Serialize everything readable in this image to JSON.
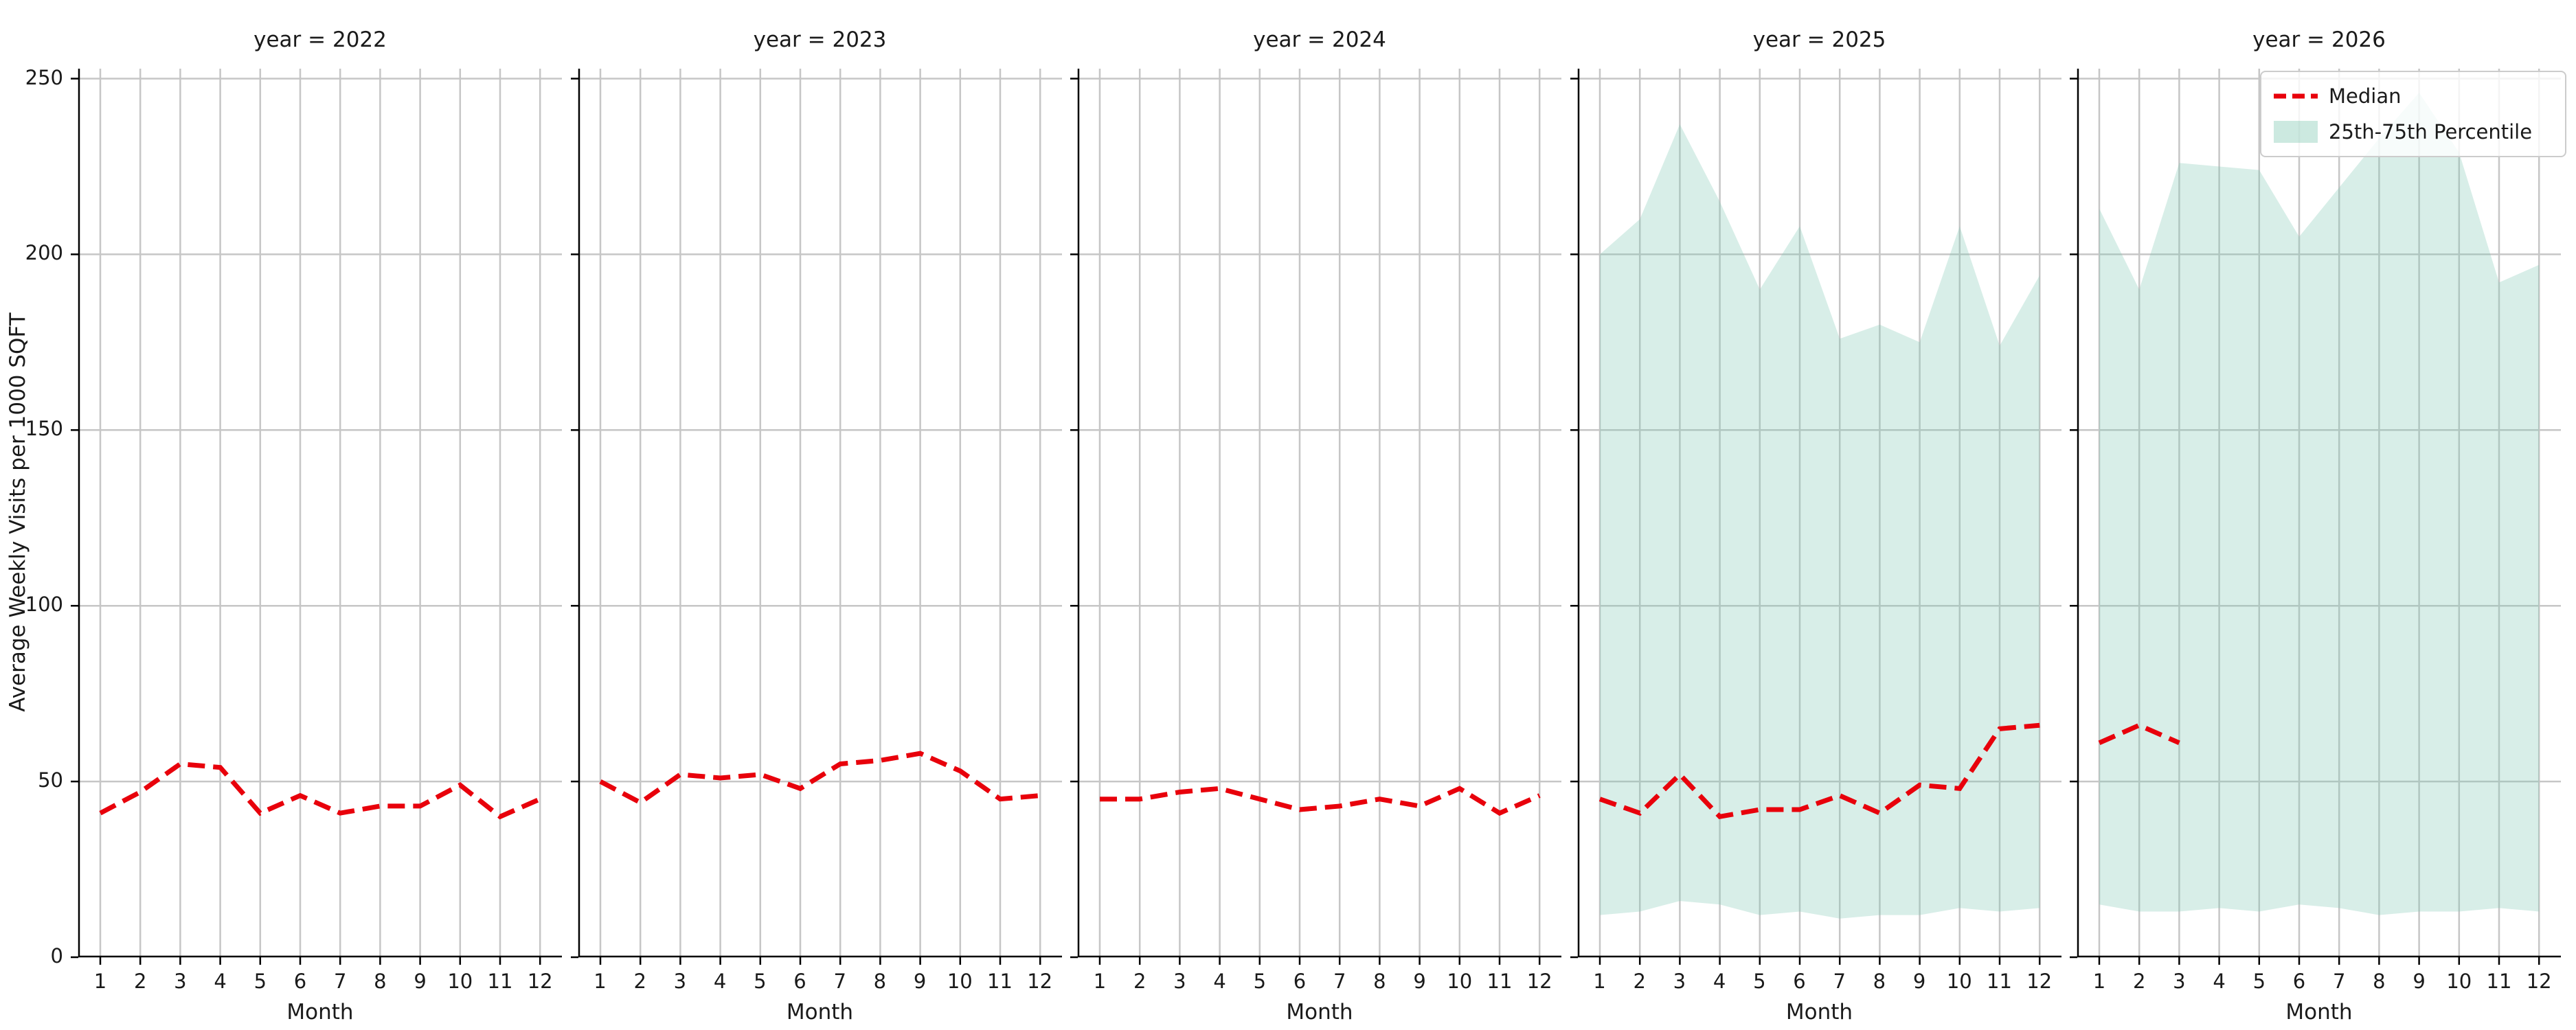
{
  "figure": {
    "ylabel": "Average Weekly Visits per 1000 SQFT",
    "xlabel": "Month"
  },
  "legend": {
    "median_label": "Median",
    "band_label": "25th-75th Percentile"
  },
  "colors": {
    "median": "#e8000b",
    "band_fill": "#7fc7b2",
    "band_opacity": 0.3,
    "grid": "#c6c6c6",
    "spine": "#000000",
    "text": "#1a1a1a"
  },
  "chart_data": {
    "type": "line",
    "x": [
      1,
      2,
      3,
      4,
      5,
      6,
      7,
      8,
      9,
      10,
      11,
      12
    ],
    "xlabel": "Month",
    "ylabel": "Average Weekly Visits per 1000 SQFT",
    "ylim": [
      0,
      252
    ],
    "yticks": [
      0,
      50,
      100,
      150,
      200,
      250
    ],
    "grid": true,
    "legend_position": "upper right",
    "series_legend": [
      "Median",
      "25th-75th Percentile"
    ],
    "facets": [
      {
        "title": "year = 2022",
        "median": [
          41,
          47,
          55,
          54,
          41,
          46,
          41,
          43,
          43,
          49,
          40,
          45
        ],
        "p25": null,
        "p75": null
      },
      {
        "title": "year = 2023",
        "median": [
          50,
          44,
          52,
          51,
          52,
          48,
          55,
          56,
          58,
          53,
          45,
          46
        ],
        "p25": null,
        "p75": null
      },
      {
        "title": "year = 2024",
        "median": [
          45,
          45,
          47,
          48,
          45,
          42,
          43,
          45,
          43,
          48,
          41,
          46
        ],
        "p25": null,
        "p75": null
      },
      {
        "title": "year = 2025",
        "median": [
          45,
          41,
          52,
          40,
          42,
          42,
          46,
          41,
          49,
          48,
          65,
          66
        ],
        "p25": [
          12,
          13,
          16,
          15,
          12,
          13,
          11,
          12,
          12,
          14,
          13,
          14
        ],
        "p75": [
          200,
          210,
          237,
          215,
          190,
          208,
          176,
          180,
          175,
          208,
          174,
          194
        ]
      },
      {
        "title": "year = 2026",
        "median": [
          61,
          66,
          61,
          null,
          null,
          null,
          null,
          null,
          null,
          null,
          null,
          null
        ],
        "p25": [
          15,
          13,
          13,
          14,
          13,
          15,
          14,
          12,
          13,
          13,
          14,
          13
        ],
        "p75": [
          213,
          190,
          226,
          225,
          224,
          205,
          219,
          233,
          246,
          229,
          192,
          197
        ]
      }
    ]
  }
}
